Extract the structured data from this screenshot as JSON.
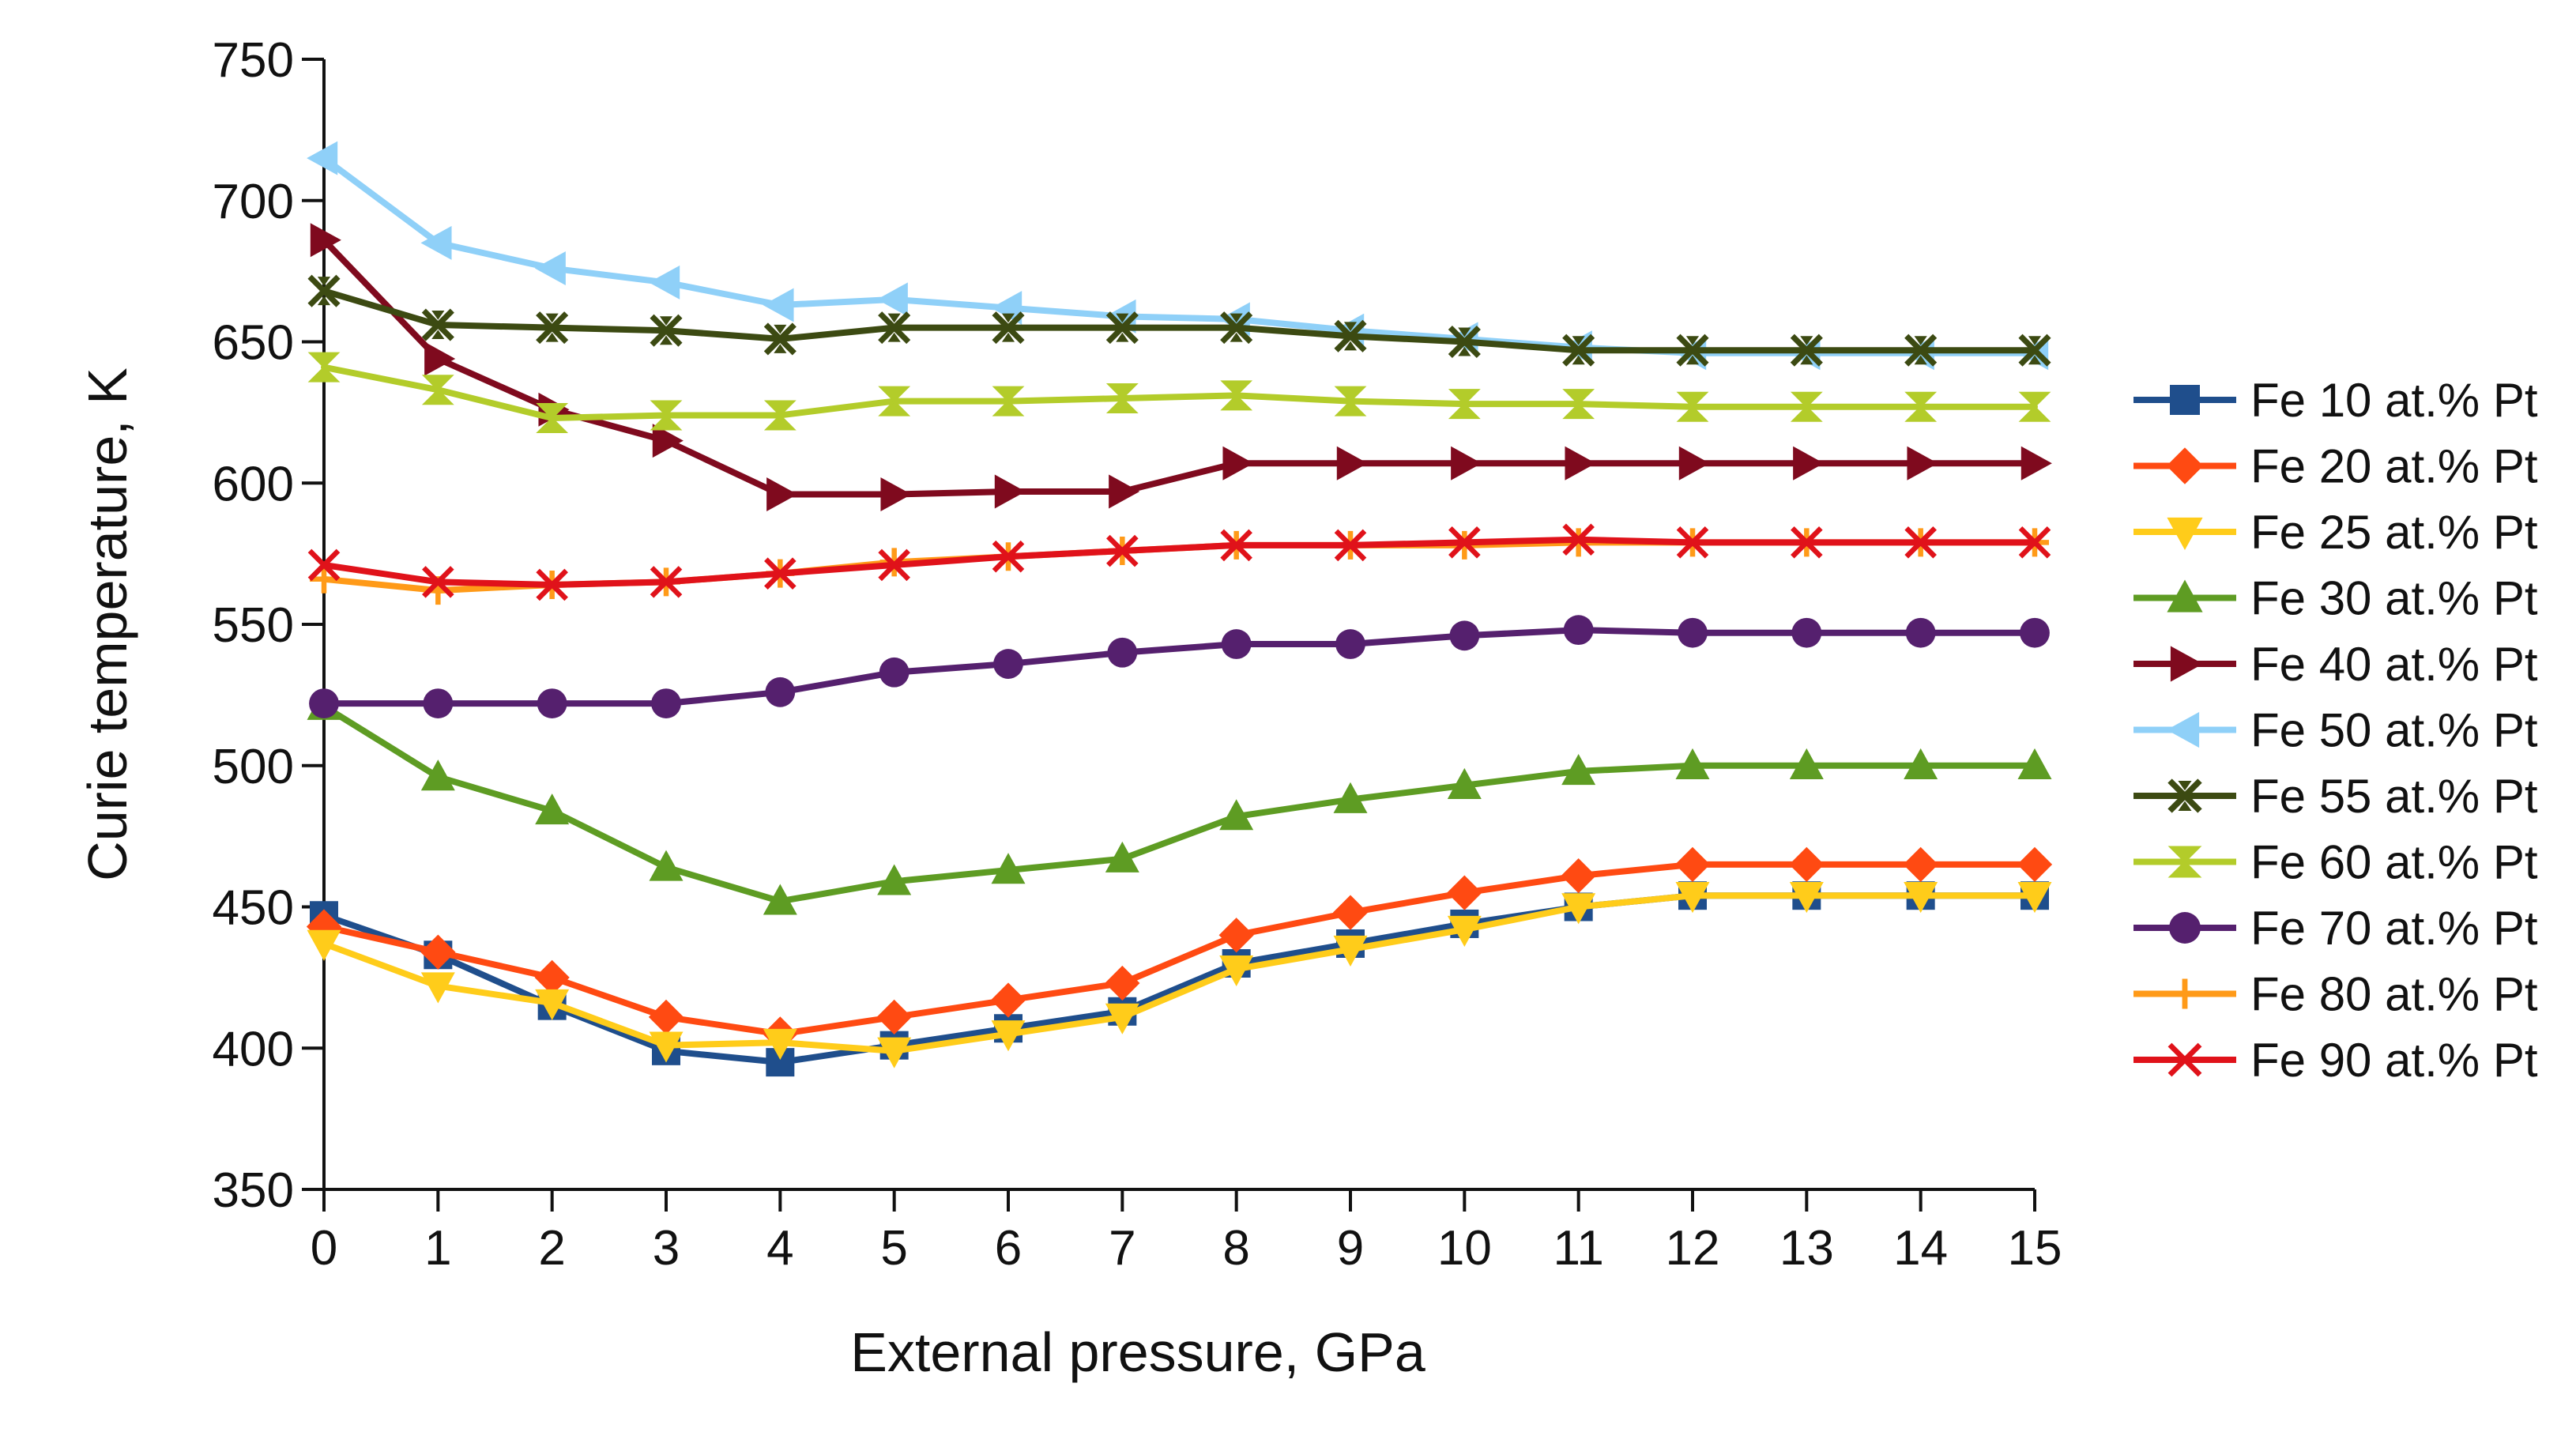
{
  "chart_data": {
    "type": "line",
    "title": "",
    "xlabel": "External pressure, GPa",
    "ylabel": "Curie temperature, K",
    "xlim": [
      0,
      15
    ],
    "ylim": [
      350,
      750
    ],
    "xticks": [
      0,
      1,
      2,
      3,
      4,
      5,
      6,
      7,
      8,
      9,
      10,
      11,
      12,
      13,
      14,
      15
    ],
    "yticks": [
      350,
      400,
      450,
      500,
      550,
      600,
      650,
      700,
      750
    ],
    "grid": false,
    "legend_position": "right",
    "x": [
      0,
      1,
      2,
      3,
      4,
      5,
      6,
      7,
      8,
      9,
      10,
      11,
      12,
      13,
      14,
      15
    ],
    "series": [
      {
        "name": "Fe 10 at.% Pt",
        "color": "#1f4e8c",
        "marker": "square",
        "values": [
          447,
          433,
          415,
          399,
          395,
          401,
          407,
          413,
          430,
          437,
          444,
          450,
          454,
          454,
          454,
          454
        ]
      },
      {
        "name": "Fe 20 at.% Pt",
        "color": "#ff4a12",
        "marker": "diamond",
        "values": [
          443,
          434,
          425,
          411,
          405,
          411,
          417,
          423,
          440,
          448,
          455,
          461,
          465,
          465,
          465,
          465
        ]
      },
      {
        "name": "Fe 25 at.% Pt",
        "color": "#ffcc1a",
        "marker": "triangle-down",
        "values": [
          437,
          422,
          416,
          401,
          402,
          399,
          405,
          411,
          428,
          435,
          442,
          450,
          454,
          454,
          454,
          454
        ]
      },
      {
        "name": "Fe 30 at.% Pt",
        "color": "#5e9c23",
        "marker": "triangle-up",
        "values": [
          521,
          496,
          484,
          464,
          452,
          459,
          463,
          467,
          482,
          488,
          493,
          498,
          500,
          500,
          500,
          500
        ]
      },
      {
        "name": "Fe 40 at.% Pt",
        "color": "#7f0a1e",
        "marker": "triangle-right",
        "values": [
          686,
          644,
          626,
          615,
          596,
          596,
          597,
          597,
          607,
          607,
          607,
          607,
          607,
          607,
          607,
          607
        ]
      },
      {
        "name": "Fe 50 at.% Pt",
        "color": "#8fd0f8",
        "marker": "triangle-left",
        "values": [
          715,
          685,
          676,
          671,
          663,
          665,
          662,
          659,
          658,
          654,
          651,
          648,
          646,
          646,
          646,
          646
        ]
      },
      {
        "name": "Fe 55 at.% Pt",
        "color": "#3c4a12",
        "marker": "x-hourglass",
        "values": [
          668,
          656,
          655,
          654,
          651,
          655,
          655,
          655,
          655,
          652,
          650,
          647,
          647,
          647,
          647,
          647
        ]
      },
      {
        "name": "Fe 60 at.% Pt",
        "color": "#b3cc2a",
        "marker": "hourglass",
        "values": [
          641,
          633,
          623,
          624,
          624,
          629,
          629,
          630,
          631,
          629,
          628,
          628,
          627,
          627,
          627,
          627
        ]
      },
      {
        "name": "Fe 70 at.% Pt",
        "color": "#55206e",
        "marker": "circle",
        "values": [
          522,
          522,
          522,
          522,
          526,
          533,
          536,
          540,
          543,
          543,
          546,
          548,
          547,
          547,
          547,
          547
        ]
      },
      {
        "name": "Fe 80 at.% Pt",
        "color": "#ff9a18",
        "marker": "plus",
        "values": [
          566,
          562,
          564,
          565,
          568,
          572,
          574,
          576,
          578,
          578,
          578,
          579,
          579,
          579,
          579,
          579
        ]
      },
      {
        "name": "Fe 90 at.% Pt",
        "color": "#e0121a",
        "marker": "x",
        "values": [
          571,
          565,
          564,
          565,
          568,
          571,
          574,
          576,
          578,
          578,
          579,
          580,
          579,
          579,
          579,
          579
        ]
      }
    ]
  }
}
